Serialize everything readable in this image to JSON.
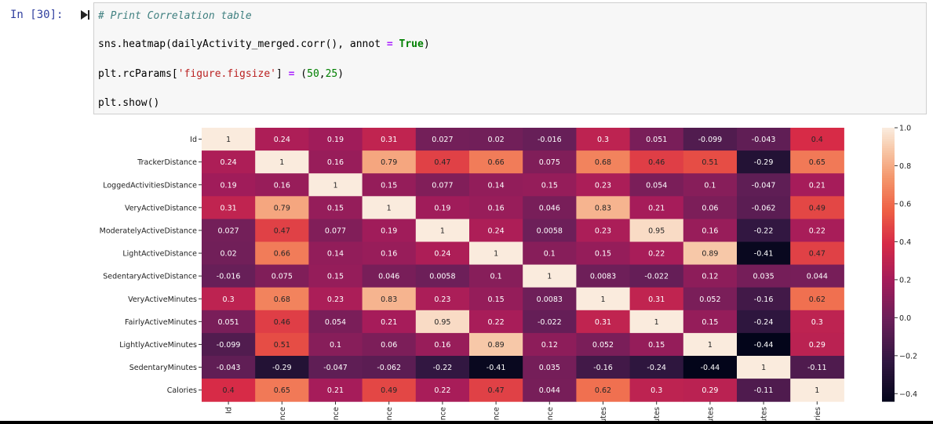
{
  "cell": {
    "prompt": "In [30]:",
    "code_comment": "# Print Correlation table",
    "code_line2_a": "sns.heatmap(dailyActivity_merged.corr(), annot ",
    "code_line2_op": "=",
    "code_line2_kw": " True",
    "code_line2_b": ")",
    "code_line3_a": "plt.rcParams[",
    "code_line3_str": "'figure.figsize'",
    "code_line3_b": "] ",
    "code_line3_op": "=",
    "code_line3_c": " (",
    "code_line3_num1": "50",
    "code_line3_d": ",",
    "code_line3_num2": "25",
    "code_line3_e": ")",
    "code_line4": "plt.show()"
  },
  "chart_data": {
    "type": "heatmap",
    "title": "",
    "row_labels": [
      "Id",
      "TrackerDistance",
      "LoggedActivitiesDistance",
      "VeryActiveDistance",
      "ModeratelyActiveDistance",
      "LightActiveDistance",
      "SedentaryActiveDistance",
      "VeryActiveMinutes",
      "FairlyActiveMinutes",
      "LightlyActiveMinutes",
      "SedentaryMinutes",
      "Calories"
    ],
    "col_labels_visible": [
      "Id",
      "ance",
      "ance",
      "ance",
      "ance",
      "ance",
      "ance",
      "utes",
      "utes",
      "utes",
      "utes",
      "ries"
    ],
    "annotations": [
      [
        "1",
        "0.24",
        "0.19",
        "0.31",
        "0.027",
        "0.02",
        "-0.016",
        "0.3",
        "0.051",
        "-0.099",
        "-0.043",
        "0.4"
      ],
      [
        "0.24",
        "1",
        "0.16",
        "0.79",
        "0.47",
        "0.66",
        "0.075",
        "0.68",
        "0.46",
        "0.51",
        "-0.29",
        "0.65"
      ],
      [
        "0.19",
        "0.16",
        "1",
        "0.15",
        "0.077",
        "0.14",
        "0.15",
        "0.23",
        "0.054",
        "0.1",
        "-0.047",
        "0.21"
      ],
      [
        "0.31",
        "0.79",
        "0.15",
        "1",
        "0.19",
        "0.16",
        "0.046",
        "0.83",
        "0.21",
        "0.06",
        "-0.062",
        "0.49"
      ],
      [
        "0.027",
        "0.47",
        "0.077",
        "0.19",
        "1",
        "0.24",
        "0.0058",
        "0.23",
        "0.95",
        "0.16",
        "-0.22",
        "0.22"
      ],
      [
        "0.02",
        "0.66",
        "0.14",
        "0.16",
        "0.24",
        "1",
        "0.1",
        "0.15",
        "0.22",
        "0.89",
        "-0.41",
        "0.47"
      ],
      [
        "-0.016",
        "0.075",
        "0.15",
        "0.046",
        "0.0058",
        "0.1",
        "1",
        "0.0083",
        "-0.022",
        "0.12",
        "0.035",
        "0.044"
      ],
      [
        "0.3",
        "0.68",
        "0.23",
        "0.83",
        "0.23",
        "0.15",
        "0.0083",
        "1",
        "0.31",
        "0.052",
        "-0.16",
        "0.62"
      ],
      [
        "0.051",
        "0.46",
        "0.054",
        "0.21",
        "0.95",
        "0.22",
        "-0.022",
        "0.31",
        "1",
        "0.15",
        "-0.24",
        "0.3"
      ],
      [
        "-0.099",
        "0.51",
        "0.1",
        "0.06",
        "0.16",
        "0.89",
        "0.12",
        "0.052",
        "0.15",
        "1",
        "-0.44",
        "0.29"
      ],
      [
        "-0.043",
        "-0.29",
        "-0.047",
        "-0.062",
        "-0.22",
        "-0.41",
        "0.035",
        "-0.16",
        "-0.24",
        "-0.44",
        "1",
        "-0.11"
      ],
      [
        "0.4",
        "0.65",
        "0.21",
        "0.49",
        "0.22",
        "0.47",
        "0.044",
        "0.62",
        "0.3",
        "0.29",
        "-0.11",
        "1"
      ]
    ],
    "colorbar": {
      "min": -0.44,
      "max": 1.0,
      "ticks": [
        1.0,
        0.8,
        0.6,
        0.4,
        0.2,
        0.0,
        -0.2,
        -0.4
      ],
      "tick_labels": [
        "1.0",
        "0.8",
        "0.6",
        "0.4",
        "0.2",
        "0.0",
        "−0.2",
        "−0.4"
      ]
    },
    "colormap": "rocket",
    "grid": false
  }
}
